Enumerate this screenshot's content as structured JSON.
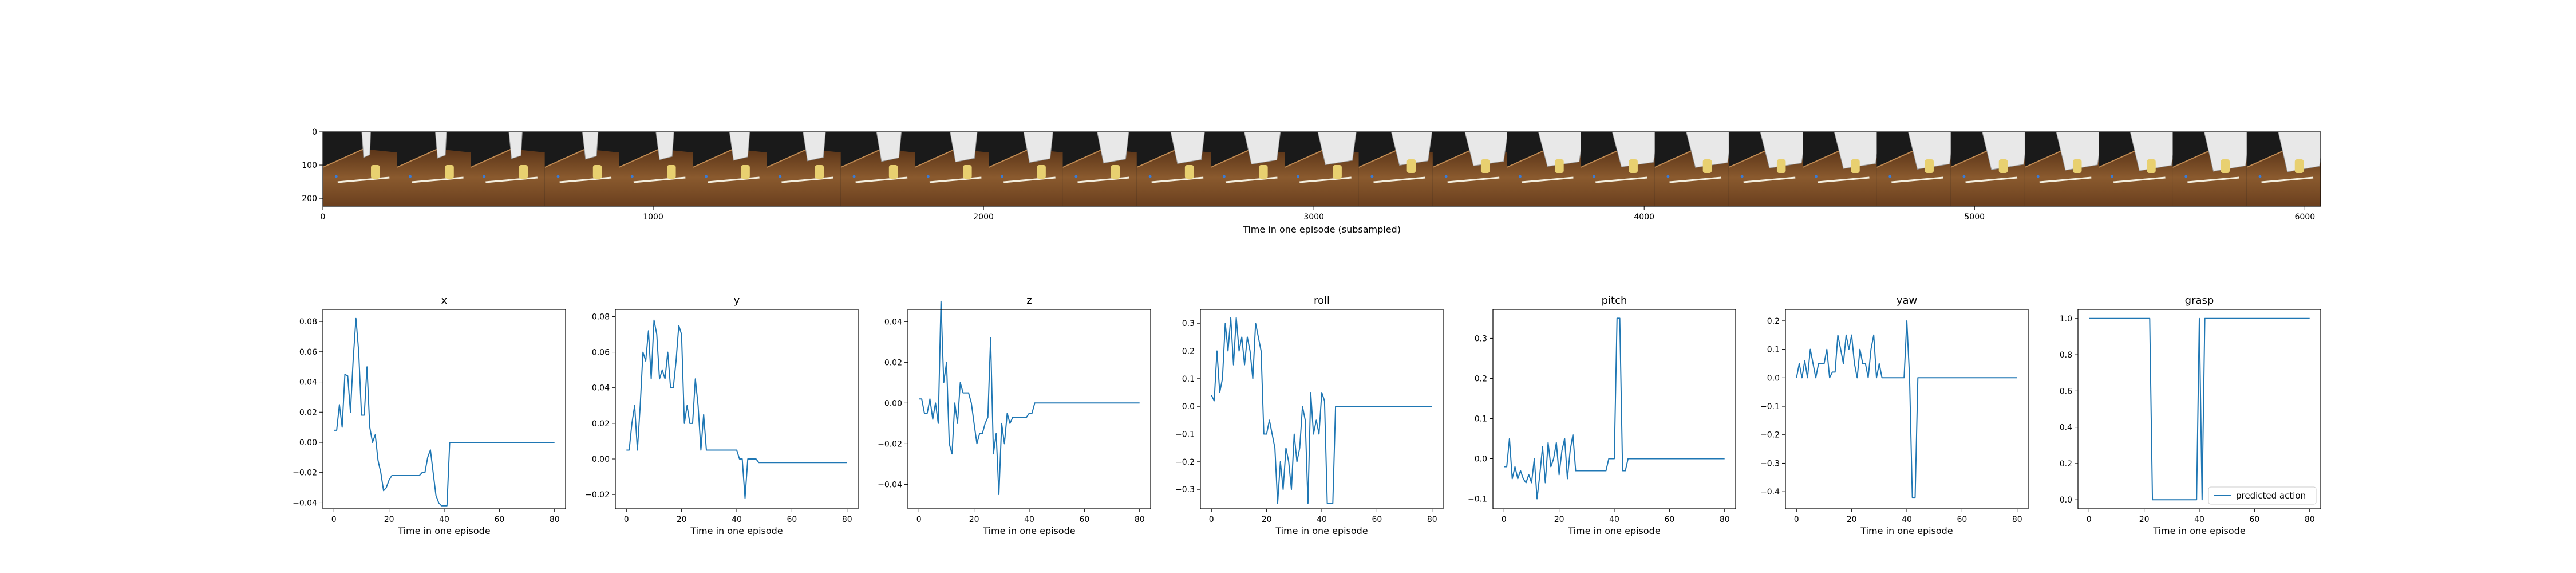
{
  "colors": {
    "series": "#1f77b4",
    "axis": "#000000",
    "wood": "#7a4a24",
    "wood_dark": "#4a2a12",
    "arm": "#e8e8e8",
    "shadow": "#1a1a1a"
  },
  "filmstrip": {
    "xlabel": "Time in one episode (subsampled)",
    "x_ticks": [
      "0",
      "1000",
      "2000",
      "3000",
      "4000",
      "5000",
      "6000"
    ],
    "y_ticks": [
      "0",
      "100",
      "200"
    ],
    "xlim": [
      0,
      6048
    ],
    "ylim": [
      224,
      0
    ],
    "frame_count": 27,
    "image_icon": "robot-camera-frames"
  },
  "chart_data": [
    {
      "type": "line",
      "title": "x",
      "xlabel": "Time in one episode",
      "xlim": [
        -4,
        84
      ],
      "ylim": [
        -0.044,
        0.088
      ],
      "x_ticks": [
        "0",
        "20",
        "40",
        "60",
        "80"
      ],
      "y_ticks": [
        {
          "v": 0.08,
          "label": "0.08"
        },
        {
          "v": 0.06,
          "label": "0.06"
        },
        {
          "v": 0.04,
          "label": "0.04"
        },
        {
          "v": 0.02,
          "label": "0.02"
        },
        {
          "v": 0.0,
          "label": "0.00"
        },
        {
          "v": -0.02,
          "label": "−0.02"
        },
        {
          "v": -0.04,
          "label": "−0.04"
        }
      ],
      "x": [
        0,
        1,
        2,
        3,
        4,
        5,
        6,
        7,
        8,
        9,
        10,
        11,
        12,
        13,
        14,
        15,
        16,
        17,
        18,
        19,
        20,
        21,
        22,
        23,
        24,
        25,
        26,
        27,
        28,
        29,
        30,
        31,
        32,
        33,
        34,
        35,
        36,
        37,
        38,
        39,
        40,
        41,
        42,
        43,
        44,
        80
      ],
      "values": [
        0.008,
        0.008,
        0.025,
        0.01,
        0.045,
        0.044,
        0.02,
        0.055,
        0.082,
        0.06,
        0.018,
        0.018,
        0.05,
        0.01,
        0.0,
        0.005,
        -0.012,
        -0.02,
        -0.032,
        -0.03,
        -0.025,
        -0.022,
        -0.022,
        -0.022,
        -0.022,
        -0.022,
        -0.022,
        -0.022,
        -0.022,
        -0.022,
        -0.022,
        -0.022,
        -0.02,
        -0.02,
        -0.01,
        -0.005,
        -0.02,
        -0.035,
        -0.04,
        -0.042,
        -0.042,
        -0.042,
        0.0,
        0.0,
        0.0,
        0.0
      ]
    },
    {
      "type": "line",
      "title": "y",
      "xlabel": "Time in one episode",
      "xlim": [
        -4,
        84
      ],
      "ylim": [
        -0.028,
        0.084
      ],
      "x_ticks": [
        "0",
        "20",
        "40",
        "60",
        "80"
      ],
      "y_ticks": [
        {
          "v": 0.08,
          "label": "0.08"
        },
        {
          "v": 0.06,
          "label": "0.06"
        },
        {
          "v": 0.04,
          "label": "0.04"
        },
        {
          "v": 0.02,
          "label": "0.02"
        },
        {
          "v": 0.0,
          "label": "0.00"
        },
        {
          "v": -0.02,
          "label": "−0.02"
        }
      ],
      "x": [
        0,
        1,
        2,
        3,
        4,
        5,
        6,
        7,
        8,
        9,
        10,
        11,
        12,
        13,
        14,
        15,
        16,
        17,
        18,
        19,
        20,
        21,
        22,
        23,
        24,
        25,
        26,
        27,
        28,
        29,
        30,
        31,
        32,
        33,
        34,
        35,
        36,
        37,
        38,
        39,
        40,
        41,
        42,
        43,
        44,
        45,
        46,
        47,
        48,
        49,
        50,
        80
      ],
      "values": [
        0.005,
        0.005,
        0.02,
        0.03,
        0.005,
        0.03,
        0.06,
        0.055,
        0.072,
        0.045,
        0.078,
        0.07,
        0.045,
        0.05,
        0.045,
        0.06,
        0.04,
        0.04,
        0.055,
        0.075,
        0.07,
        0.02,
        0.03,
        0.02,
        0.02,
        0.045,
        0.03,
        0.005,
        0.025,
        0.005,
        0.005,
        0.005,
        0.005,
        0.005,
        0.005,
        0.005,
        0.005,
        0.005,
        0.005,
        0.005,
        0.005,
        0.0,
        0.0,
        -0.022,
        0.0,
        0.0,
        0.0,
        0.0,
        -0.002,
        -0.002,
        -0.002,
        -0.002
      ]
    },
    {
      "type": "line",
      "title": "z",
      "xlabel": "Time in one episode",
      "xlim": [
        -4,
        84
      ],
      "ylim": [
        -0.052,
        0.046
      ],
      "x_ticks": [
        "0",
        "20",
        "40",
        "60",
        "80"
      ],
      "y_ticks": [
        {
          "v": 0.04,
          "label": "0.04"
        },
        {
          "v": 0.02,
          "label": "0.02"
        },
        {
          "v": 0.0,
          "label": "0.00"
        },
        {
          "v": -0.02,
          "label": "−0.02"
        },
        {
          "v": -0.04,
          "label": "−0.04"
        }
      ],
      "x": [
        0,
        1,
        2,
        3,
        4,
        5,
        6,
        7,
        8,
        9,
        10,
        11,
        12,
        13,
        14,
        15,
        16,
        17,
        18,
        19,
        20,
        21,
        22,
        23,
        24,
        25,
        26,
        27,
        28,
        29,
        30,
        31,
        32,
        33,
        34,
        35,
        36,
        37,
        38,
        39,
        40,
        41,
        42,
        43,
        44,
        45,
        46,
        47,
        48,
        49,
        50,
        80
      ],
      "values": [
        0.002,
        0.002,
        -0.005,
        -0.005,
        0.002,
        -0.008,
        0.0,
        -0.01,
        0.05,
        0.01,
        0.02,
        -0.02,
        -0.025,
        0.0,
        -0.01,
        0.01,
        0.005,
        0.005,
        0.005,
        0.0,
        -0.01,
        -0.02,
        -0.015,
        -0.015,
        -0.01,
        -0.007,
        0.032,
        -0.025,
        -0.015,
        -0.045,
        -0.01,
        -0.02,
        -0.005,
        -0.01,
        -0.007,
        -0.007,
        -0.007,
        -0.007,
        -0.007,
        -0.007,
        -0.005,
        -0.005,
        0.0,
        0.0,
        0.0,
        0.0,
        0.0,
        0.0,
        0.0,
        0.0,
        0.0,
        0.0
      ]
    },
    {
      "type": "line",
      "title": "roll",
      "xlabel": "Time in one episode",
      "xlim": [
        -4,
        84
      ],
      "ylim": [
        -0.37,
        0.35
      ],
      "x_ticks": [
        "0",
        "20",
        "40",
        "60",
        "80"
      ],
      "y_ticks": [
        {
          "v": 0.3,
          "label": "0.3"
        },
        {
          "v": 0.2,
          "label": "0.2"
        },
        {
          "v": 0.1,
          "label": "0.1"
        },
        {
          "v": 0.0,
          "label": "0.0"
        },
        {
          "v": -0.1,
          "label": "−0.1"
        },
        {
          "v": -0.2,
          "label": "−0.2"
        },
        {
          "v": -0.3,
          "label": "−0.3"
        }
      ],
      "x": [
        0,
        1,
        2,
        3,
        4,
        5,
        6,
        7,
        8,
        9,
        10,
        11,
        12,
        13,
        14,
        15,
        16,
        17,
        18,
        19,
        20,
        21,
        22,
        23,
        24,
        25,
        26,
        27,
        28,
        29,
        30,
        31,
        32,
        33,
        34,
        35,
        36,
        37,
        38,
        39,
        40,
        41,
        42,
        43,
        44,
        45,
        46,
        47,
        48,
        49,
        50,
        80
      ],
      "values": [
        0.04,
        0.02,
        0.2,
        0.05,
        0.1,
        0.3,
        0.2,
        0.32,
        0.15,
        0.32,
        0.2,
        0.25,
        0.15,
        0.25,
        0.2,
        0.1,
        0.3,
        0.25,
        0.2,
        -0.1,
        -0.1,
        -0.05,
        -0.1,
        -0.15,
        -0.35,
        -0.2,
        -0.3,
        -0.15,
        -0.2,
        -0.3,
        -0.1,
        -0.2,
        -0.15,
        0.0,
        -0.05,
        -0.35,
        0.05,
        -0.1,
        -0.05,
        -0.1,
        0.05,
        0.02,
        -0.35,
        -0.35,
        -0.35,
        0.0,
        0.0,
        0.0,
        0.0,
        0.0,
        0.0,
        0.0
      ]
    },
    {
      "type": "line",
      "title": "pitch",
      "xlabel": "Time in one episode",
      "xlim": [
        -4,
        84
      ],
      "ylim": [
        -0.125,
        0.372
      ],
      "x_ticks": [
        "0",
        "20",
        "40",
        "60",
        "80"
      ],
      "y_ticks": [
        {
          "v": 0.3,
          "label": "0.3"
        },
        {
          "v": 0.2,
          "label": "0.2"
        },
        {
          "v": 0.1,
          "label": "0.1"
        },
        {
          "v": 0.0,
          "label": "0.0"
        },
        {
          "v": -0.1,
          "label": "−0.1"
        }
      ],
      "x": [
        0,
        1,
        2,
        3,
        4,
        5,
        6,
        7,
        8,
        9,
        10,
        11,
        12,
        13,
        14,
        15,
        16,
        17,
        18,
        19,
        20,
        21,
        22,
        23,
        24,
        25,
        26,
        27,
        28,
        29,
        30,
        31,
        32,
        33,
        34,
        35,
        36,
        37,
        38,
        39,
        40,
        41,
        42,
        43,
        44,
        45,
        46,
        47,
        48,
        49,
        50,
        80
      ],
      "values": [
        -0.02,
        -0.02,
        0.05,
        -0.05,
        -0.02,
        -0.05,
        -0.03,
        -0.05,
        -0.06,
        -0.04,
        -0.06,
        0.0,
        -0.1,
        -0.04,
        0.03,
        -0.06,
        0.04,
        -0.02,
        0.0,
        0.04,
        -0.04,
        0.02,
        0.05,
        -0.05,
        0.02,
        0.06,
        -0.03,
        -0.03,
        -0.03,
        -0.03,
        -0.03,
        -0.03,
        -0.03,
        -0.03,
        -0.03,
        -0.03,
        -0.03,
        -0.03,
        0.0,
        0.0,
        0.0,
        0.35,
        0.35,
        -0.03,
        -0.03,
        0.0,
        0.0,
        0.0,
        0.0,
        0.0,
        0.0,
        0.0
      ]
    },
    {
      "type": "line",
      "title": "yaw",
      "xlabel": "Time in one episode",
      "xlim": [
        -4,
        84
      ],
      "ylim": [
        -0.46,
        0.24
      ],
      "x_ticks": [
        "0",
        "20",
        "40",
        "60",
        "80"
      ],
      "y_ticks": [
        {
          "v": 0.2,
          "label": "0.2"
        },
        {
          "v": 0.1,
          "label": "0.1"
        },
        {
          "v": 0.0,
          "label": "0.0"
        },
        {
          "v": -0.1,
          "label": "−0.1"
        },
        {
          "v": -0.2,
          "label": "−0.2"
        },
        {
          "v": -0.3,
          "label": "−0.3"
        },
        {
          "v": -0.4,
          "label": "−0.4"
        }
      ],
      "x": [
        0,
        1,
        2,
        3,
        4,
        5,
        6,
        7,
        8,
        9,
        10,
        11,
        12,
        13,
        14,
        15,
        16,
        17,
        18,
        19,
        20,
        21,
        22,
        23,
        24,
        25,
        26,
        27,
        28,
        29,
        30,
        31,
        32,
        33,
        34,
        35,
        36,
        37,
        38,
        39,
        40,
        41,
        42,
        43,
        44,
        45,
        46,
        47,
        48,
        49,
        50,
        80
      ],
      "values": [
        0.0,
        0.05,
        0.0,
        0.06,
        0.0,
        0.1,
        0.05,
        0.0,
        0.05,
        0.05,
        0.05,
        0.1,
        0.0,
        0.02,
        0.02,
        0.15,
        0.1,
        0.05,
        0.15,
        0.1,
        0.15,
        0.05,
        0.0,
        0.1,
        0.05,
        0.05,
        0.0,
        0.1,
        0.15,
        0.0,
        0.05,
        0.0,
        0.0,
        0.0,
        0.0,
        0.0,
        0.0,
        0.0,
        0.0,
        0.0,
        0.2,
        0.0,
        -0.42,
        -0.42,
        0.0,
        0.0,
        0.0,
        0.0,
        0.0,
        0.0,
        0.0,
        0.0
      ]
    },
    {
      "type": "line",
      "title": "grasp",
      "xlabel": "Time in one episode",
      "xlim": [
        -4,
        84
      ],
      "ylim": [
        -0.05,
        1.05
      ],
      "x_ticks": [
        "0",
        "20",
        "40",
        "60",
        "80"
      ],
      "y_ticks": [
        {
          "v": 1.0,
          "label": "1.0"
        },
        {
          "v": 0.8,
          "label": "0.8"
        },
        {
          "v": 0.6,
          "label": "0.6"
        },
        {
          "v": 0.4,
          "label": "0.4"
        },
        {
          "v": 0.2,
          "label": "0.2"
        },
        {
          "v": 0.0,
          "label": "0.0"
        }
      ],
      "x": [
        0,
        22,
        23,
        39,
        40,
        41,
        42,
        80
      ],
      "values": [
        1.0,
        1.0,
        0.0,
        0.0,
        1.0,
        0.0,
        1.0,
        1.0
      ],
      "legend": {
        "entries": [
          "predicted action"
        ],
        "placement": "lower-right"
      }
    }
  ]
}
